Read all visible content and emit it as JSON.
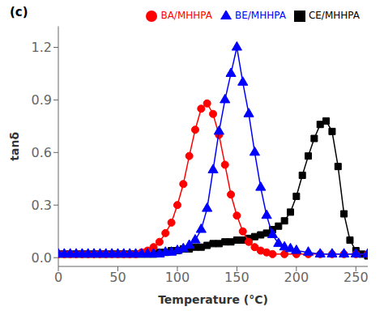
{
  "chart_data": {
    "type": "line",
    "title": "(c)",
    "xlabel": "Temperature (°C)",
    "ylabel": "tanδ",
    "xlim": [
      0,
      260
    ],
    "ylim": [
      -0.05,
      1.32
    ],
    "xticks": [
      0,
      50,
      100,
      150,
      200,
      250
    ],
    "yticks": [
      {
        "value": 0.0,
        "label": "0.0"
      },
      0.3,
      0.6,
      0.9,
      1.2
    ],
    "grid": false,
    "legend": "upper right",
    "series": [
      {
        "name": "CE/MHHPA",
        "color": "black",
        "marker": "square",
        "x": [
          0,
          5,
          10,
          15,
          20,
          25,
          30,
          35,
          40,
          45,
          50,
          55,
          60,
          65,
          70,
          75,
          80,
          85,
          90,
          95,
          100,
          105,
          110,
          115,
          120,
          125,
          130,
          135,
          140,
          145,
          150,
          155,
          160,
          165,
          170,
          175,
          180,
          185,
          190,
          195,
          200,
          205,
          210,
          215,
          220,
          225,
          230,
          235,
          240,
          245,
          250,
          255,
          260
        ],
        "values": [
          0.02,
          0.02,
          0.02,
          0.02,
          0.02,
          0.02,
          0.02,
          0.02,
          0.02,
          0.02,
          0.02,
          0.02,
          0.02,
          0.02,
          0.02,
          0.02,
          0.02,
          0.03,
          0.03,
          0.04,
          0.04,
          0.05,
          0.05,
          0.06,
          0.06,
          0.07,
          0.08,
          0.08,
          0.09,
          0.09,
          0.1,
          0.1,
          0.11,
          0.12,
          0.13,
          0.14,
          0.16,
          0.18,
          0.21,
          0.26,
          0.35,
          0.47,
          0.58,
          0.68,
          0.76,
          0.78,
          0.72,
          0.52,
          0.25,
          0.1,
          0.04,
          0.02,
          0.01
        ]
      },
      {
        "name": "BA/MHHPA",
        "color": "red",
        "marker": "circle",
        "x": [
          0,
          5,
          10,
          15,
          20,
          25,
          30,
          35,
          40,
          45,
          50,
          55,
          60,
          65,
          70,
          75,
          80,
          85,
          90,
          95,
          100,
          105,
          110,
          115,
          120,
          125,
          130,
          135,
          140,
          145,
          150,
          155,
          160,
          165,
          170,
          175,
          180,
          190,
          200,
          210,
          220,
          230,
          240,
          250,
          260
        ],
        "values": [
          0.02,
          0.02,
          0.02,
          0.02,
          0.02,
          0.02,
          0.02,
          0.02,
          0.02,
          0.02,
          0.02,
          0.02,
          0.02,
          0.02,
          0.03,
          0.04,
          0.06,
          0.09,
          0.14,
          0.2,
          0.3,
          0.42,
          0.58,
          0.73,
          0.85,
          0.88,
          0.82,
          0.7,
          0.53,
          0.36,
          0.24,
          0.15,
          0.09,
          0.06,
          0.04,
          0.03,
          0.02,
          0.02,
          0.02,
          0.02,
          0.02,
          0.02,
          0.02,
          0.02,
          0.02
        ]
      },
      {
        "name": "BE/MHHPA",
        "color": "blue",
        "marker": "triangle",
        "x": [
          0,
          5,
          10,
          15,
          20,
          25,
          30,
          35,
          40,
          45,
          50,
          55,
          60,
          65,
          70,
          75,
          80,
          85,
          90,
          95,
          100,
          105,
          110,
          115,
          120,
          125,
          130,
          135,
          140,
          145,
          150,
          155,
          160,
          165,
          170,
          175,
          180,
          185,
          190,
          195,
          200,
          210,
          220,
          230,
          240,
          250,
          260
        ],
        "values": [
          0.02,
          0.02,
          0.02,
          0.02,
          0.02,
          0.02,
          0.02,
          0.02,
          0.02,
          0.02,
          0.02,
          0.02,
          0.02,
          0.02,
          0.02,
          0.02,
          0.02,
          0.02,
          0.03,
          0.03,
          0.04,
          0.05,
          0.07,
          0.1,
          0.16,
          0.28,
          0.5,
          0.72,
          0.9,
          1.05,
          1.2,
          1.0,
          0.82,
          0.6,
          0.4,
          0.24,
          0.13,
          0.08,
          0.06,
          0.05,
          0.04,
          0.03,
          0.02,
          0.02,
          0.02,
          0.02,
          0.02
        ]
      }
    ]
  }
}
